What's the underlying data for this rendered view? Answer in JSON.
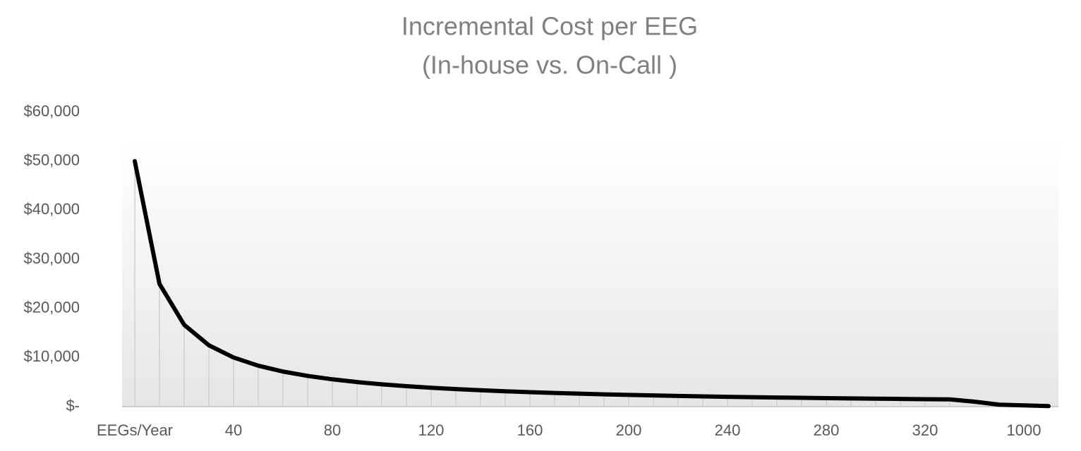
{
  "chart_data": {
    "type": "line",
    "title": "Incremental Cost per EEG",
    "subtitle": "(In-house vs. On-Call )",
    "categories": [
      "EEGs/Year",
      null,
      null,
      null,
      "40",
      null,
      null,
      null,
      "80",
      null,
      null,
      null,
      "120",
      null,
      null,
      null,
      "160",
      null,
      null,
      null,
      "200",
      null,
      null,
      null,
      "240",
      null,
      null,
      null,
      "280",
      null,
      null,
      null,
      "320",
      null,
      null,
      null,
      "1000",
      null
    ],
    "series": [
      {
        "name": "Incremental Cost",
        "color": "#000000",
        "values": [
          50000,
          25000,
          16667,
          12500,
          10000,
          8333,
          7143,
          6250,
          5556,
          5000,
          4545,
          4167,
          3846,
          3571,
          3333,
          3125,
          2941,
          2778,
          2632,
          2500,
          2381,
          2273,
          2174,
          2083,
          2000,
          1923,
          1852,
          1786,
          1724,
          1667,
          1613,
          1563,
          1515,
          1471,
          1000,
          400,
          250,
          100
        ]
      }
    ],
    "ylim": [
      0,
      60000
    ],
    "yticks": [
      {
        "value": 0,
        "label": "$-"
      },
      {
        "value": 10000,
        "label": "$10,000"
      },
      {
        "value": 20000,
        "label": "$20,000"
      },
      {
        "value": 30000,
        "label": "$30,000"
      },
      {
        "value": 40000,
        "label": "$40,000"
      },
      {
        "value": 50000,
        "label": "$50,000"
      },
      {
        "value": 60000,
        "label": "$60,000"
      }
    ],
    "drop_lines": true
  }
}
